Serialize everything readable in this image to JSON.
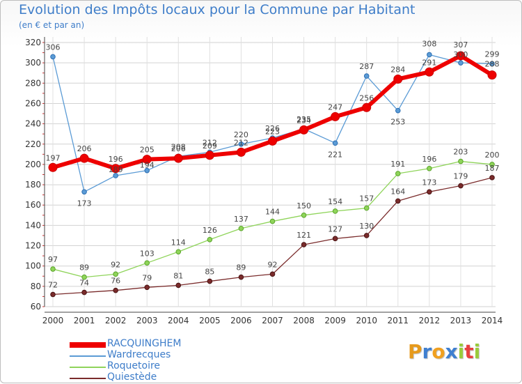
{
  "title": "Evolution des Impôts locaux pour la Commune par Habitant",
  "subtitle": "(en € et par an)",
  "logo_text": "Proxiti",
  "logo_colors": [
    "#e69a1c",
    "#3f7fd0",
    "#f0a020",
    "#3f7fd0",
    "#9acb3c",
    "#e84040",
    "#9acb3c"
  ],
  "chart_data": {
    "type": "line",
    "x": [
      2000,
      2001,
      2002,
      2003,
      2004,
      2005,
      2006,
      2007,
      2008,
      2009,
      2010,
      2011,
      2012,
      2013,
      2014
    ],
    "y_ticks": [
      60,
      80,
      100,
      120,
      140,
      160,
      180,
      200,
      220,
      240,
      260,
      280,
      300,
      320
    ],
    "ylim": [
      60,
      320
    ],
    "grid": true,
    "legend_position": "bottom-left",
    "series": [
      {
        "name": "RACQUINGHEM",
        "color": "#ee0000",
        "width": 6,
        "values": [
          197,
          206,
          196,
          205,
          206,
          209,
          212,
          223,
          234,
          247,
          256,
          284,
          291,
          307,
          288
        ],
        "labels": [
          "197",
          "206",
          "196",
          "205",
          "206",
          "209",
          "212",
          "223",
          "234",
          "247",
          "256",
          "284",
          "291",
          "307",
          "288"
        ]
      },
      {
        "name": "Wardrecques",
        "color": "#5b9bd5",
        "width": 1.3,
        "values": [
          306,
          173,
          189,
          194,
          208,
          212,
          220,
          226,
          235,
          221,
          287,
          253,
          308,
          300,
          299
        ],
        "labels": [
          "306",
          "173",
          "189",
          "194",
          "208",
          "212",
          "220",
          "226",
          "235",
          "221",
          "287",
          "253",
          "308",
          "300",
          "299"
        ]
      },
      {
        "name": "Roquetoire",
        "color": "#8fd45a",
        "width": 1.3,
        "values": [
          97,
          89,
          92,
          103,
          114,
          126,
          137,
          144,
          150,
          154,
          157,
          191,
          196,
          203,
          200
        ],
        "labels": [
          "97",
          "89",
          "92",
          "103",
          "114",
          "126",
          "137",
          "144",
          "150",
          "154",
          "157",
          "191",
          "196",
          "203",
          "200"
        ]
      },
      {
        "name": "Quiestède",
        "color": "#7a2b2b",
        "width": 1.3,
        "values": [
          72,
          74,
          76,
          79,
          81,
          85,
          89,
          92,
          121,
          127,
          130,
          164,
          173,
          179,
          187
        ],
        "labels": [
          "72",
          "74",
          "76",
          "79",
          "81",
          "85",
          "89",
          "92",
          "121",
          "127",
          "130",
          "164",
          "173",
          "179",
          "187"
        ]
      }
    ]
  }
}
